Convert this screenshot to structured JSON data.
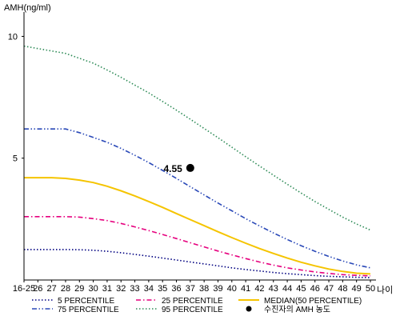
{
  "chart_data": {
    "type": "line",
    "ylabel": "AMH(ng/ml)",
    "xlabel": "나이",
    "categories": [
      "16-25",
      "26",
      "27",
      "28",
      "29",
      "30",
      "31",
      "32",
      "33",
      "34",
      "35",
      "36",
      "37",
      "38",
      "39",
      "40",
      "41",
      "42",
      "43",
      "44",
      "45",
      "46",
      "47",
      "48",
      "49",
      "50"
    ],
    "ylim": [
      0,
      11
    ],
    "yticks": [
      5,
      10
    ],
    "grid": false,
    "legend_position": "bottom",
    "series": [
      {
        "name": "5 PERCENTILE",
        "color": "#000080",
        "style": "dotted",
        "values": [
          1.25,
          1.25,
          1.25,
          1.25,
          1.24,
          1.22,
          1.18,
          1.12,
          1.05,
          0.98,
          0.9,
          0.82,
          0.74,
          0.66,
          0.58,
          0.5,
          0.43,
          0.37,
          0.31,
          0.26,
          0.22,
          0.18,
          0.15,
          0.13,
          0.11,
          0.1
        ]
      },
      {
        "name": "25 PERCENTILE",
        "color": "#E6007E",
        "style": "dashdot",
        "values": [
          2.6,
          2.6,
          2.6,
          2.6,
          2.58,
          2.52,
          2.44,
          2.32,
          2.18,
          2.03,
          1.87,
          1.7,
          1.53,
          1.36,
          1.19,
          1.03,
          0.88,
          0.74,
          0.61,
          0.5,
          0.41,
          0.33,
          0.27,
          0.22,
          0.19,
          0.17
        ]
      },
      {
        "name": "MEDIAN(50 PERCENTILE)",
        "color": "#F5C400",
        "style": "solid",
        "values": [
          4.2,
          4.2,
          4.2,
          4.17,
          4.1,
          4.0,
          3.85,
          3.66,
          3.45,
          3.22,
          2.98,
          2.73,
          2.48,
          2.23,
          1.98,
          1.74,
          1.51,
          1.29,
          1.09,
          0.9,
          0.73,
          0.58,
          0.45,
          0.35,
          0.28,
          0.25
        ]
      },
      {
        "name": "75 PERCENTILE",
        "color": "#2A49B8",
        "style": "dashdotdot",
        "values": [
          6.2,
          6.2,
          6.2,
          6.2,
          6.05,
          5.85,
          5.65,
          5.4,
          5.12,
          4.82,
          4.5,
          4.17,
          3.83,
          3.49,
          3.16,
          2.84,
          2.52,
          2.22,
          1.93,
          1.66,
          1.41,
          1.18,
          0.97,
          0.78,
          0.62,
          0.5
        ]
      },
      {
        "name": "95 PERCENTILE",
        "color": "#2E8B57",
        "style": "dotted",
        "values": [
          9.6,
          9.5,
          9.4,
          9.3,
          9.1,
          8.9,
          8.62,
          8.32,
          8.0,
          7.68,
          7.33,
          6.97,
          6.6,
          6.22,
          5.84,
          5.45,
          5.06,
          4.68,
          4.3,
          3.93,
          3.57,
          3.22,
          2.9,
          2.58,
          2.3,
          2.05
        ]
      }
    ],
    "point": {
      "name": "수진자의 AMH 농도",
      "category": "37",
      "value": 4.6,
      "label": "4.55",
      "color": "#000000"
    },
    "legend_order": [
      "5 PERCENTILE",
      "25 PERCENTILE",
      "MEDIAN(50 PERCENTILE)",
      "75 PERCENTILE",
      "95 PERCENTILE",
      "수진자의 AMH 농도"
    ]
  }
}
